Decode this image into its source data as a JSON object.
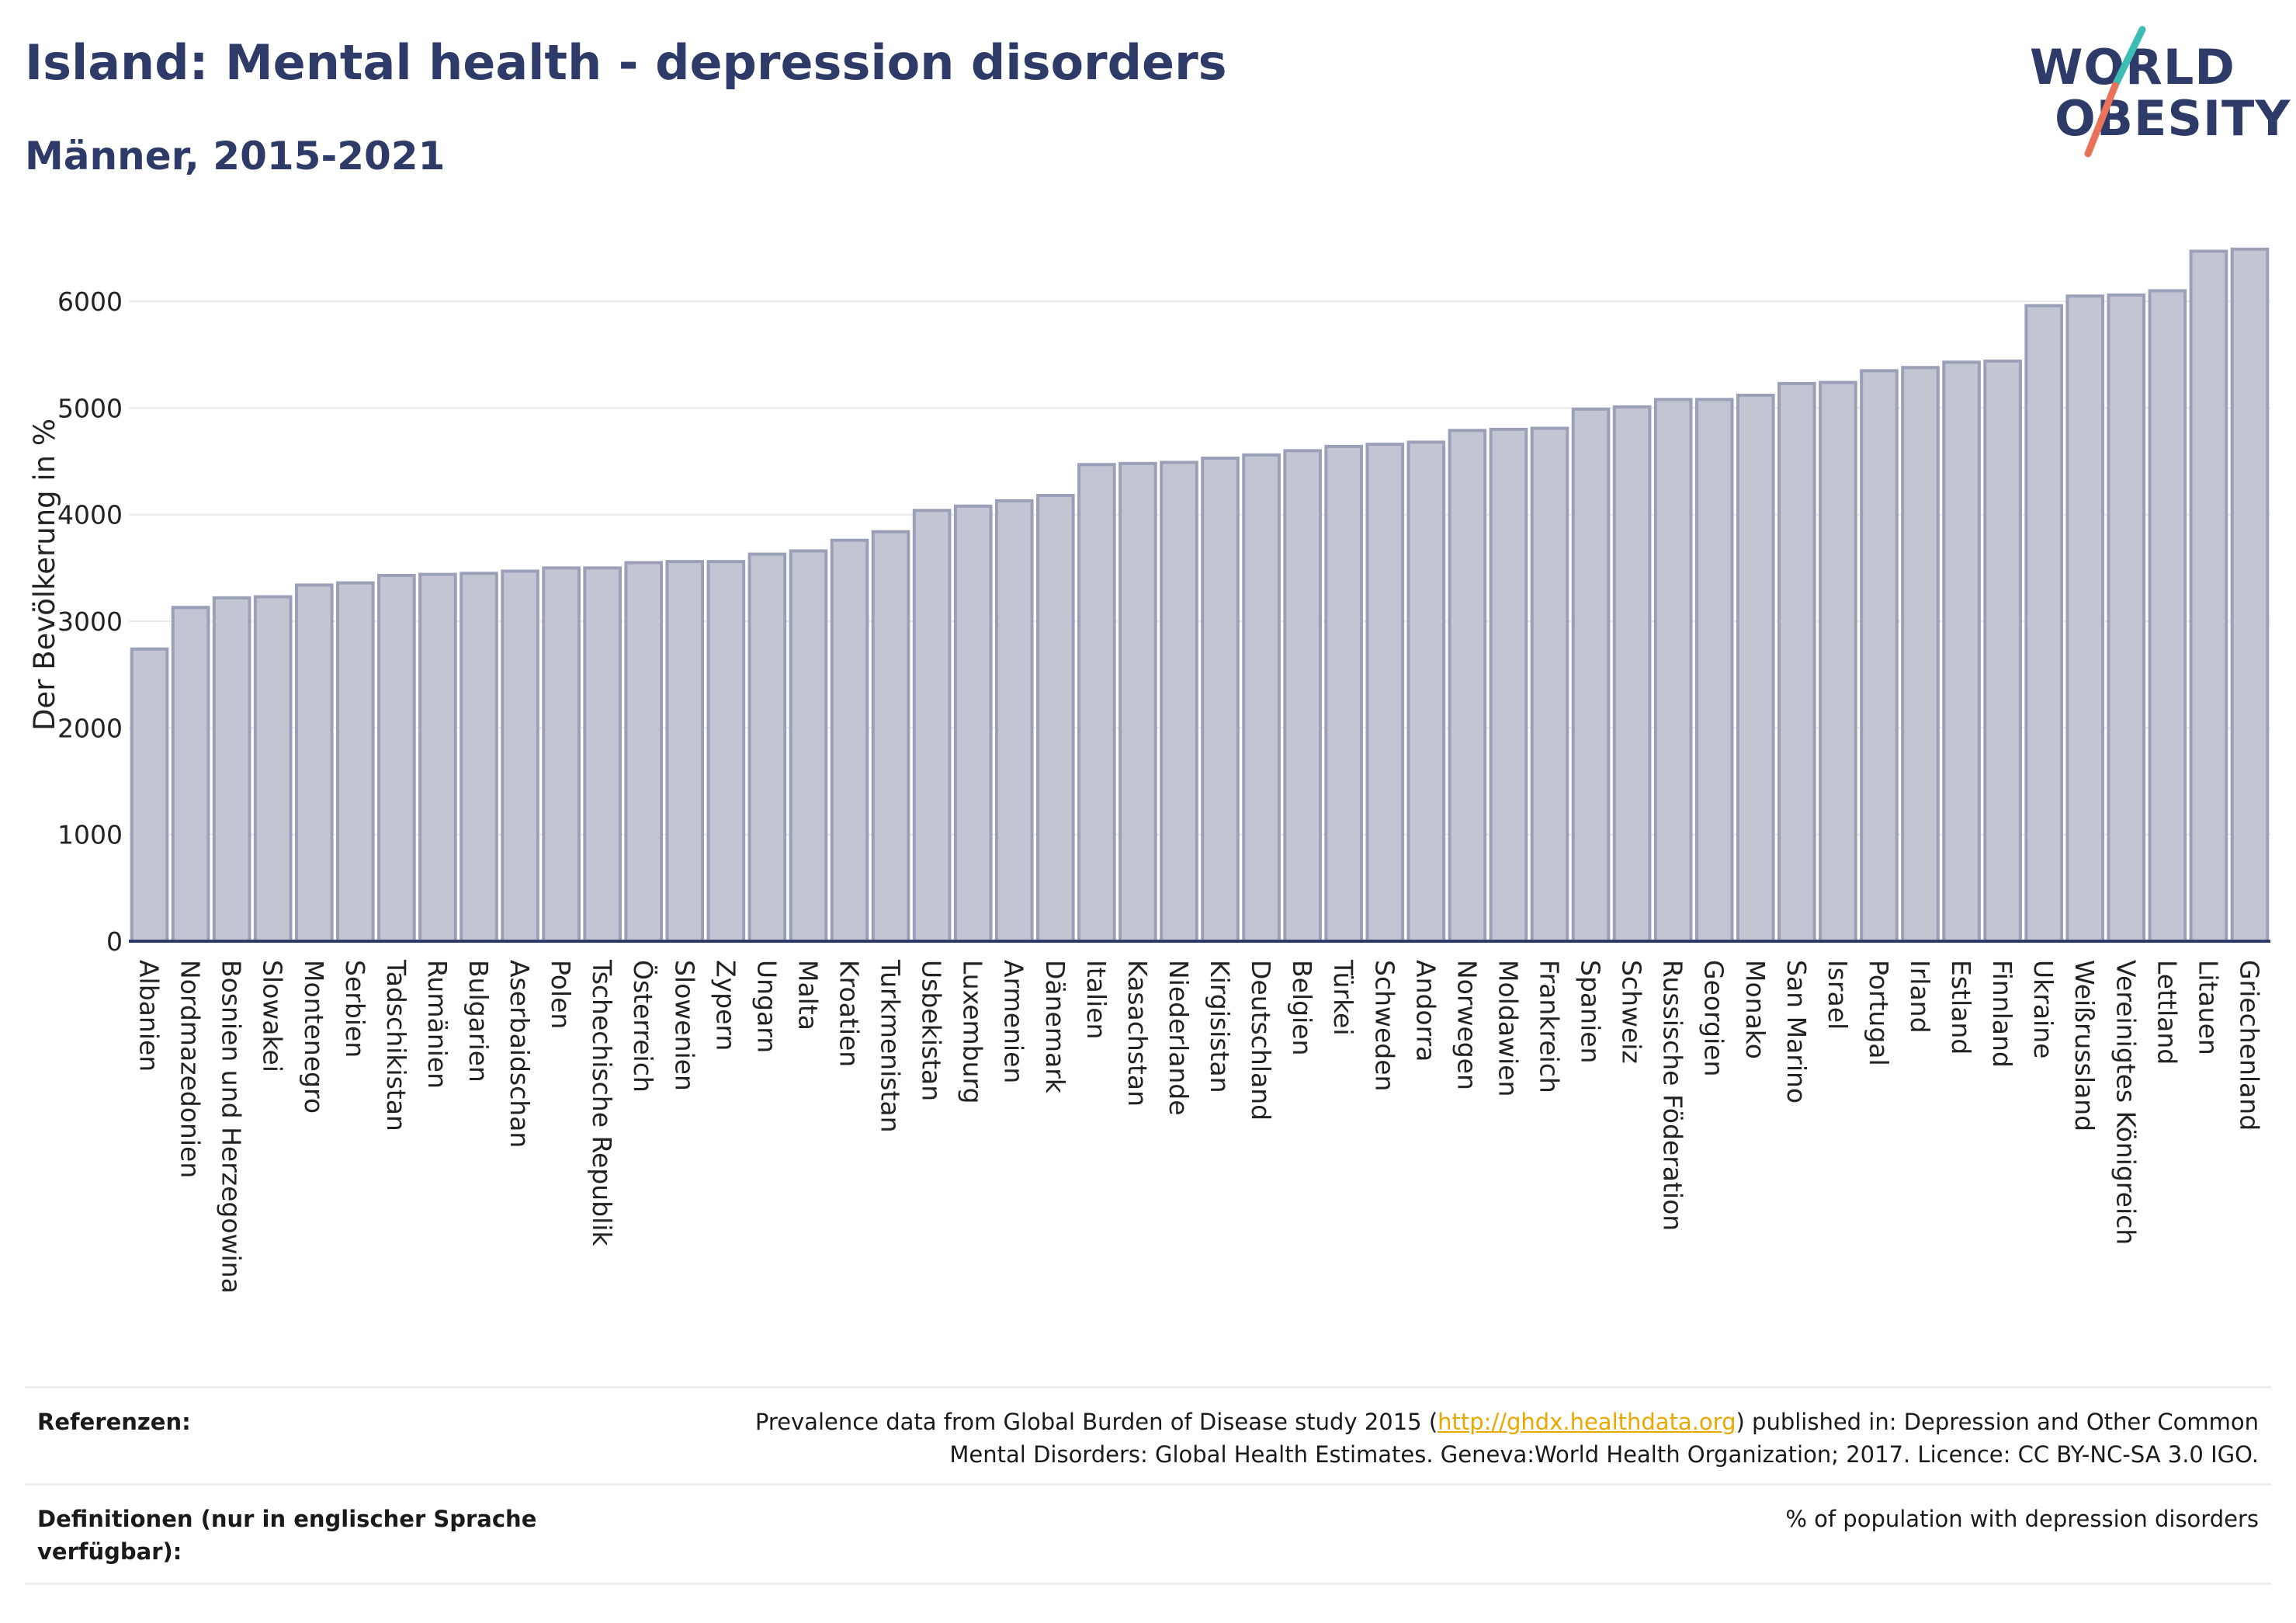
{
  "header": {
    "title": "Island: Mental health - depression disorders",
    "subtitle": "Männer, 2015-2021"
  },
  "logo": {
    "line1": "WORLD",
    "line2": "OBESITY"
  },
  "colors": {
    "title": "#2e3a67",
    "bar_fill": "#c3c6d2",
    "bar_stroke": "#9aa0b8",
    "axis": "#2e3a67",
    "grid": "#eaeaea",
    "link": "#e8a800",
    "logo_teal": "#3dbdb4",
    "logo_coral": "#e8735a"
  },
  "chart_data": {
    "type": "bar",
    "title": "Island: Mental health - depression disorders",
    "subtitle": "Männer, 2015-2021",
    "xlabel": "",
    "ylabel": "Der Bevölkerung in %",
    "ylim": [
      0,
      6700
    ],
    "yticks": [
      0,
      1000,
      2000,
      3000,
      4000,
      5000,
      6000
    ],
    "grid": true,
    "categories": [
      "Albanien",
      "Nordmazedonien",
      "Bosnien und Herzegowina",
      "Slowakei",
      "Montenegro",
      "Serbien",
      "Tadschikistan",
      "Rumänien",
      "Bulgarien",
      "Aserbaidschan",
      "Polen",
      "Tschechische Republik",
      "Österreich",
      "Slowenien",
      "Zypern",
      "Ungarn",
      "Malta",
      "Kroatien",
      "Turkmenistan",
      "Usbekistan",
      "Luxemburg",
      "Armenien",
      "Dänemark",
      "Italien",
      "Kasachstan",
      "Niederlande",
      "Kirgisistan",
      "Deutschland",
      "Belgien",
      "Türkei",
      "Schweden",
      "Andorra",
      "Norwegen",
      "Moldawien",
      "Frankreich",
      "Spanien",
      "Schweiz",
      "Russische Föderation",
      "Georgien",
      "Monako",
      "San Marino",
      "Israel",
      "Portugal",
      "Irland",
      "Estland",
      "Finnland",
      "Ukraine",
      "Weißrussland",
      "Vereinigtes Königreich",
      "Lettland",
      "Litauen",
      "Griechenland"
    ],
    "values": [
      2740,
      3130,
      3220,
      3230,
      3340,
      3360,
      3430,
      3440,
      3450,
      3470,
      3500,
      3500,
      3550,
      3560,
      3560,
      3630,
      3660,
      3760,
      3840,
      4040,
      4080,
      4130,
      4180,
      4470,
      4480,
      4490,
      4530,
      4560,
      4600,
      4640,
      4660,
      4680,
      4790,
      4800,
      4810,
      4990,
      5010,
      5080,
      5080,
      5120,
      5230,
      5240,
      5350,
      5380,
      5430,
      5440,
      5960,
      6050,
      6060,
      6100,
      6470,
      6490
    ]
  },
  "footer": {
    "references_label": "Referenzen:",
    "references_pre": "Prevalence data from Global Burden of Disease study 2015 (",
    "references_link": "http://ghdx.healthdata.org",
    "references_post": ") published in: Depression and Other Common",
    "references_line2": "Mental Disorders: Global Health Estimates. Geneva:World Health Organization; 2017. Licence: CC BY-NC-SA 3.0 IGO.",
    "definitions_label_line1": "Definitionen (nur in englischer Sprache",
    "definitions_label_line2": "verfügbar):",
    "definitions_text": "% of population with depression disorders"
  }
}
